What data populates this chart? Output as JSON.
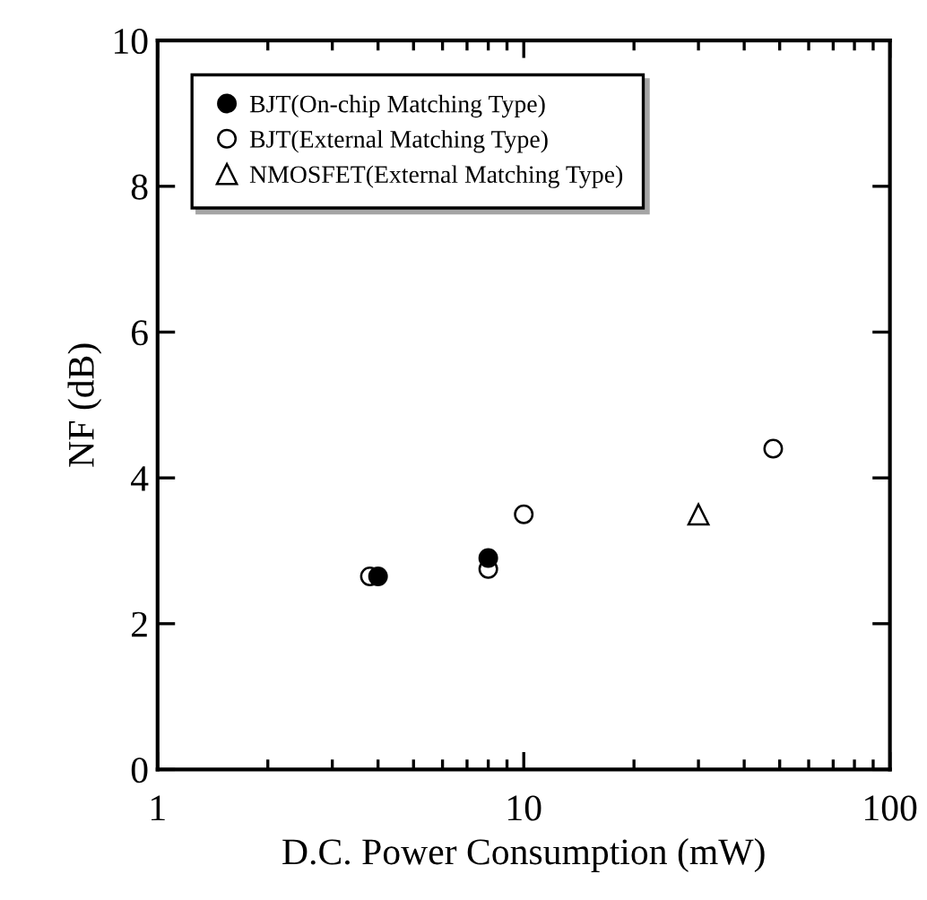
{
  "chart_data": {
    "type": "scatter",
    "xlabel": "D.C. Power Consumption (mW)",
    "ylabel": "NF (dB)",
    "log": "x",
    "xlim": [
      1,
      100
    ],
    "xticks": [
      1,
      10,
      100
    ],
    "ylim": [
      0,
      10
    ],
    "yticks": [
      0,
      2,
      4,
      6,
      8,
      10
    ],
    "grid": false,
    "legend": "top left",
    "series": [
      {
        "name": "BJT(On-chip Matching Type)",
        "color": "#000000",
        "marker": "circle",
        "x": [
          4.0,
          8.0
        ],
        "values": [
          2.65,
          2.9
        ]
      },
      {
        "name": "BJT(External Matching Type)",
        "color": "#000000",
        "marker": "circle",
        "x": [
          3.8,
          8.0,
          10,
          48
        ],
        "values": [
          2.65,
          2.75,
          3.5,
          4.4
        ]
      },
      {
        "name": "NMOSFET(External Matching Type)",
        "color": "#000000",
        "marker": "triangle",
        "x": [
          30
        ],
        "values": [
          3.5
        ]
      }
    ]
  }
}
